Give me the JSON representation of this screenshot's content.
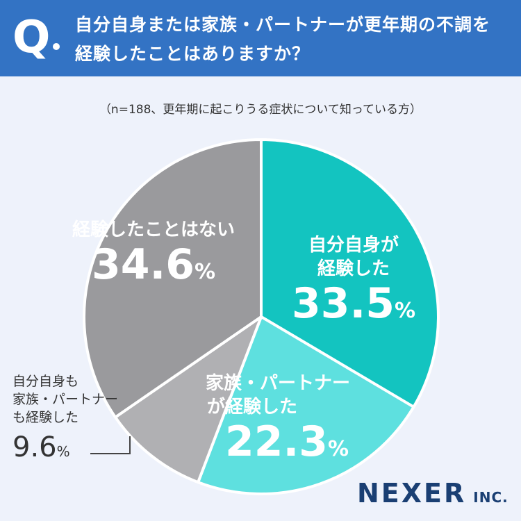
{
  "header": {
    "q_letter": "Q",
    "question_line1": "自分自身または家族・パートナーが更年期の不調を",
    "question_line2": "経験したことはありますか？"
  },
  "subtitle": "（n=188、更年期に起こりうる症状について知っている方）",
  "chart_data": {
    "type": "pie",
    "title": "",
    "slices": [
      {
        "label_lines": [
          "自分自身が",
          "経験した"
        ],
        "value": 33.5,
        "display": "33.5",
        "unit": "%",
        "color": "#13c4c0"
      },
      {
        "label_lines": [
          "家族・パートナー",
          "が経験した"
        ],
        "value": 22.3,
        "display": "22.3",
        "unit": "%",
        "color": "#5ee0df"
      },
      {
        "label_lines": [
          "自分自身も",
          "家族・パートナー",
          "も経験した"
        ],
        "value": 9.6,
        "display": "9.6",
        "unit": "%",
        "color": "#b0b0b3"
      },
      {
        "label_lines": [
          "経験したことはない"
        ],
        "value": 34.6,
        "display": "34.6",
        "unit": "%",
        "color": "#9a9a9d"
      }
    ]
  },
  "logo": {
    "main": "NEXER",
    "suffix": "INC."
  },
  "colors": {
    "header_bg": "#3373c4",
    "page_bg": "#eef2fb"
  }
}
